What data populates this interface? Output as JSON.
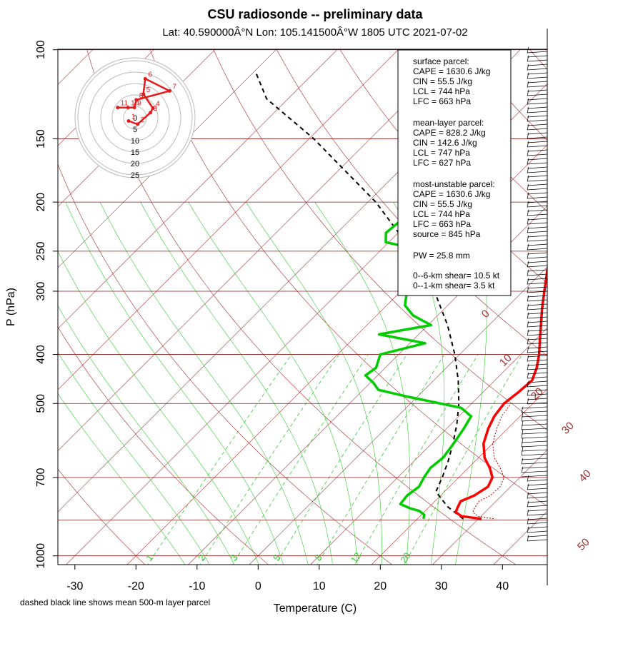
{
  "title": "CSU radiosonde -- preliminary data",
  "subtitle": "Lat: 40.590000Â°N Lon: 105.141500Â°W    1805 UTC  2021-07-02",
  "footnote": "dashed black line shows mean 500-m layer parcel",
  "colors": {
    "temperature": "#ff0000",
    "dewpoint": "#00cc00",
    "parcel": "#000000",
    "isobar": "#8b1a1a",
    "isotherm": "#a52a2a",
    "mixing_ratio": "#33cc33",
    "hodograph": "#e41a1c"
  },
  "info_box": {
    "surface_header": "surface parcel:",
    "surface_cape": "CAPE = 1630.6 J/kg",
    "surface_cin": "CIN = 55.5 J/kg",
    "surface_lcl": "LCL = 744 hPa",
    "surface_lfc": "LFC = 663 hPa",
    "mean_header": "mean-layer parcel:",
    "mean_cape": "CAPE = 828.2 J/kg",
    "mean_cin": "CIN = 142.6 J/kg",
    "mean_lcl": "LCL = 747 hPa",
    "mean_lfc": "LFC = 627 hPa",
    "mu_header": "most-unstable parcel:",
    "mu_cape": "CAPE = 1630.6 J/kg",
    "mu_cin": "CIN = 55.5 J/kg",
    "mu_lcl": "LCL = 744 hPa",
    "mu_lfc": "LFC = 663 hPa",
    "mu_source": "source = 845 hPa",
    "pw": "PW =  25.8 mm",
    "shear_06": "0--6-km shear= 10.5 kt",
    "shear_01": "0--1-km shear= 3.5 kt"
  },
  "hodograph": {
    "ring_labels": [
      "5",
      "10",
      "15",
      "20",
      "25"
    ],
    "center_label": "0",
    "points": [
      {
        "label": "1",
        "u": -1.0,
        "v": -0.5
      },
      {
        "label": "2",
        "u": 0.4,
        "v": -1.0
      },
      {
        "label": "3",
        "u": 2.4,
        "v": 0.8
      },
      {
        "label": "4",
        "u": 2.8,
        "v": 1.5
      },
      {
        "label": "5",
        "u": 1.3,
        "v": 3.7
      },
      {
        "label": "6",
        "u": 1.6,
        "v": 6.1
      },
      {
        "label": "7",
        "u": 5.4,
        "v": 4.2
      },
      {
        "label": "8",
        "u": 0.2,
        "v": 2.8
      },
      {
        "label": "9",
        "u": -0.1,
        "v": 1.6
      },
      {
        "label": "10",
        "u": -1.1,
        "v": 1.6
      },
      {
        "label": "11",
        "u": -2.7,
        "v": 1.6
      }
    ]
  },
  "chart_data": {
    "type": "line",
    "chart_kind": "skew-T log-P diagram",
    "xlabel": "Temperature (C)",
    "ylabel": "P (hPa)",
    "xlim": [
      -33,
      51
    ],
    "ylim": [
      1050,
      100
    ],
    "x_ticks": [
      "-30",
      "-20",
      "-10",
      "0",
      "10",
      "20",
      "30",
      "40"
    ],
    "y_ticks": [
      "100",
      "150",
      "200",
      "250",
      "300",
      "400",
      "500",
      "700",
      "1000"
    ],
    "y_tick_values": [
      100,
      150,
      200,
      250,
      300,
      400,
      500,
      700,
      1000
    ],
    "isobars": [
      100,
      150,
      200,
      250,
      300,
      400,
      500,
      700,
      850,
      1000
    ],
    "isotherm_labels": [
      "0",
      "10",
      "20",
      "30",
      "40",
      "50"
    ],
    "mixing_ratio_labels": [
      "1",
      "2",
      "3",
      "5",
      "8",
      "12",
      "20"
    ],
    "series": [
      {
        "name": "Temperature",
        "p": [
          845,
          835,
          820,
          805,
          780,
          760,
          730,
          700,
          670,
          640,
          600,
          560,
          530,
          500,
          475,
          450,
          425,
          400,
          375,
          350,
          325,
          300,
          275,
          250,
          235,
          220,
          200,
          185,
          170,
          160,
          150,
          140,
          130,
          120,
          115,
          110,
          100
        ],
        "t": [
          30.5,
          26.8,
          25.2,
          24.8,
          24.2,
          25.5,
          26.3,
          25.5,
          23.5,
          21.0,
          18.5,
          16.8,
          15.8,
          15.3,
          15.8,
          16.1,
          14.8,
          13.0,
          10.8,
          8.5,
          6.0,
          3.5,
          0.8,
          -2.0,
          -0.8,
          -0.5,
          -1.5,
          -2.0,
          -1.5,
          -0.3,
          1.5,
          2.0,
          3.3,
          4.8,
          6.5,
          7.8,
          8.2
        ]
      },
      {
        "name": "Dewpoint",
        "p": [
          845,
          830,
          815,
          805,
          790,
          760,
          730,
          700,
          670,
          640,
          600,
          560,
          530,
          510,
          485,
          470,
          455,
          440,
          425,
          400,
          380,
          365,
          350,
          335,
          320,
          300,
          290,
          270,
          255,
          248,
          240,
          230,
          215,
          200,
          190,
          185,
          175,
          130,
          120,
          110,
          100
        ],
        "t": [
          21.0,
          20.5,
          19.0,
          17.0,
          14.8,
          14.5,
          15.0,
          14.3,
          13.8,
          14.2,
          13.6,
          12.8,
          12.0,
          9.0,
          -1.5,
          -7.5,
          -9.5,
          -12.0,
          -11.5,
          -13.0,
          -7.5,
          -16.5,
          -9.5,
          -14.0,
          -17.0,
          -19.0,
          -20.5,
          -16.0,
          -19.5,
          -24.0,
          -30.5,
          -32.0,
          -31.5,
          -33.0,
          -34.0,
          -35.0,
          -34.0,
          -36.0,
          -38.0,
          -40.0,
          -42.0
        ]
      },
      {
        "name": "Mean-layer parcel",
        "p": [
          845,
          800,
          747,
          700,
          650,
          600,
          550,
          500,
          450,
          400,
          350,
          300,
          250,
          200,
          150,
          125,
          110
        ],
        "t": [
          27.5,
          23.0,
          18.6,
          17.3,
          15.6,
          13.5,
          11.0,
          7.9,
          4.0,
          -0.8,
          -6.8,
          -14.5,
          -24.7,
          -38.7,
          -59.2,
          -73.5,
          -80.0
        ]
      },
      {
        "name": "Virtual temperature",
        "p": [
          845,
          835,
          820,
          805,
          780,
          760,
          730,
          700,
          670,
          640,
          600,
          560,
          530,
          500
        ],
        "t": [
          32.5,
          29.5,
          28.0,
          27.6,
          27.2,
          28.1,
          28.3,
          27.4,
          25.2,
          22.6,
          20.0,
          18.2,
          17.0,
          16.4
        ]
      }
    ]
  }
}
